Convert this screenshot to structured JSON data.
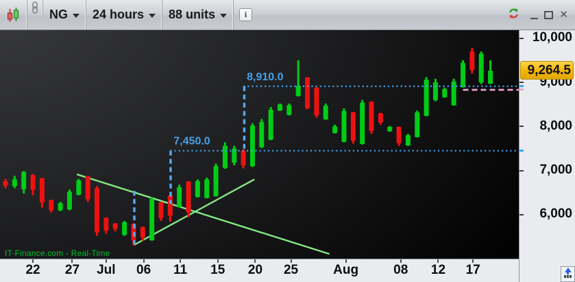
{
  "toolbar": {
    "chart_type_icon": "candlestick-icon",
    "link_icon": "chain-link-icon",
    "instrument_label": "NG",
    "timeframe_label": "24 hours",
    "units_label": "88 units",
    "info_label": "i"
  },
  "window_controls": {
    "refresh_icon": "refresh-sync-icon",
    "minimize_icon": "minimize-icon",
    "maximize_icon": "maximize-icon",
    "close_icon": "close-icon",
    "close_glyph": "✕"
  },
  "watermark": "IT-Finance.com - Real-Time",
  "price_axis": {
    "ticks": [
      {
        "label": "10,000",
        "value": 10000
      },
      {
        "label": "9,000",
        "value": 9000
      },
      {
        "label": "8,000",
        "value": 8000
      },
      {
        "label": "7,000",
        "value": 7000
      },
      {
        "label": "6,000",
        "value": 6000
      }
    ],
    "current_price_label": "9,264.5",
    "current_price_value": 9264.5,
    "badge_color": "#f0b404"
  },
  "time_axis": {
    "labels": [
      {
        "text": "22",
        "index": 3.0
      },
      {
        "text": "27",
        "index": 7.3
      },
      {
        "text": "Jul",
        "index": 11.0
      },
      {
        "text": "06",
        "index": 15.1
      },
      {
        "text": "11",
        "index": 19.1
      },
      {
        "text": "15",
        "index": 23.2
      },
      {
        "text": "20",
        "index": 27.3
      },
      {
        "text": "25",
        "index": 31.2
      },
      {
        "text": "Aug",
        "index": 37.2
      },
      {
        "text": "08",
        "index": 43.2
      },
      {
        "text": "12",
        "index": 47.3
      },
      {
        "text": "17",
        "index": 51.1
      }
    ]
  },
  "annotations": {
    "label_color": "#49a0e8",
    "level_color": "#3fa3f2",
    "measure_color": "#5aa8ee",
    "trendline_color": "#85e885",
    "dashed_level_color": "#f0a6d4",
    "levels": [
      {
        "label": "8,910.0",
        "value": 8910,
        "start_index": 26.0,
        "style": "dotted"
      },
      {
        "label": "7,450.0",
        "value": 7450,
        "start_index": 18.0,
        "style": "dotted"
      }
    ],
    "dashed_level": {
      "value": 8830,
      "start_index": 50.0,
      "style": "dashed"
    },
    "measure_lines": [
      {
        "index": 26.1,
        "from": 8910,
        "to": 7450
      },
      {
        "index": 18.05,
        "from": 7450,
        "to": 6240
      },
      {
        "index": 14.08,
        "from": 6540,
        "to": 5330
      }
    ],
    "trendlines": [
      {
        "from_index": 7.8,
        "from_price": 6915,
        "to_index": 35.4,
        "to_price": 5110
      },
      {
        "from_index": 14.1,
        "from_price": 5320,
        "to_index": 27.2,
        "to_price": 6800
      }
    ]
  },
  "chart_data": {
    "type": "candlestick",
    "symbol": "NG",
    "timeframe": "24 hours",
    "units_loaded": 88,
    "up_color": "#00cd16",
    "down_color": "#ee1111",
    "x_tick_labels": [
      "22",
      "27",
      "Jul",
      "06",
      "11",
      "15",
      "20",
      "25",
      "Aug",
      "08",
      "12",
      "17"
    ],
    "y_axis_ticks": [
      10000,
      9000,
      8000,
      7000,
      6000
    ],
    "ylim": [
      5200,
      10050
    ],
    "last_price": 9264.5,
    "ohlc": [
      [
        6760,
        6810,
        6600,
        6660
      ],
      [
        6650,
        6880,
        6600,
        6800
      ],
      [
        6580,
        6990,
        6480,
        6970
      ],
      [
        6900,
        6920,
        6440,
        6560
      ],
      [
        6820,
        6840,
        6160,
        6280
      ],
      [
        6330,
        6340,
        6050,
        6100
      ],
      [
        6100,
        6290,
        6080,
        6260
      ],
      [
        6120,
        6570,
        6100,
        6520
      ],
      [
        6450,
        6810,
        6440,
        6780
      ],
      [
        6870,
        6880,
        6290,
        6350
      ],
      [
        6600,
        6650,
        5520,
        5600
      ],
      [
        5930,
        5940,
        5570,
        5640
      ],
      [
        5800,
        5810,
        5620,
        5680
      ],
      [
        5540,
        5860,
        5520,
        5830
      ],
      [
        5790,
        5810,
        5300,
        5420
      ],
      [
        5720,
        5730,
        5410,
        5480
      ],
      [
        5420,
        6400,
        5410,
        6350
      ],
      [
        6280,
        6290,
        5860,
        5920
      ],
      [
        6430,
        6450,
        5840,
        5980
      ],
      [
        6170,
        6680,
        6160,
        6620
      ],
      [
        6750,
        6760,
        5940,
        6050
      ],
      [
        6400,
        6800,
        6390,
        6760
      ],
      [
        6380,
        6840,
        6370,
        6800
      ],
      [
        6420,
        7160,
        6410,
        7100
      ],
      [
        7060,
        7640,
        7040,
        7560
      ],
      [
        7180,
        7560,
        7120,
        7500
      ],
      [
        7450,
        7480,
        7050,
        7120
      ],
      [
        7100,
        8070,
        7080,
        8020
      ],
      [
        7530,
        8170,
        7510,
        8100
      ],
      [
        7700,
        8440,
        7690,
        8380
      ],
      [
        8360,
        8520,
        8350,
        8500
      ],
      [
        8260,
        8520,
        8250,
        8480
      ],
      [
        8690,
        9500,
        8680,
        8920
      ],
      [
        9110,
        9120,
        8390,
        8410
      ],
      [
        8880,
        8890,
        8200,
        8250
      ],
      [
        8160,
        8520,
        8150,
        8470
      ],
      [
        7850,
        8040,
        7840,
        8000
      ],
      [
        7650,
        8410,
        7640,
        8350
      ],
      [
        8320,
        8330,
        7610,
        7680
      ],
      [
        7600,
        8600,
        7590,
        8540
      ],
      [
        8560,
        8570,
        7830,
        7900
      ],
      [
        8300,
        8310,
        8040,
        8090
      ],
      [
        7890,
        8010,
        7880,
        7990
      ],
      [
        7990,
        8000,
        7560,
        7620
      ],
      [
        7570,
        7830,
        7560,
        7800
      ],
      [
        7760,
        8360,
        7750,
        8320
      ],
      [
        8240,
        9120,
        8230,
        9060
      ],
      [
        8600,
        9080,
        8570,
        9000
      ],
      [
        8660,
        8880,
        8650,
        8850
      ],
      [
        8480,
        9080,
        8470,
        9020
      ],
      [
        8890,
        9500,
        8880,
        9440
      ],
      [
        9700,
        9780,
        9200,
        9280
      ],
      [
        9000,
        9700,
        8960,
        9650
      ],
      [
        8970,
        9500,
        8960,
        9264.5
      ]
    ]
  }
}
